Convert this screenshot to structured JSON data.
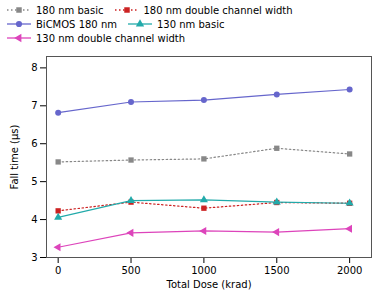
{
  "chart_data": {
    "type": "line",
    "x": [
      0,
      500,
      1000,
      1500,
      2000
    ],
    "series": [
      {
        "name": "180 nm basic",
        "color": "#888888",
        "values": [
          5.52,
          5.57,
          5.6,
          5.88,
          5.73
        ],
        "marker": "square",
        "line_style": "dotted"
      },
      {
        "name": "180 nm double channel width",
        "color": "#cc2222",
        "values": [
          4.23,
          4.46,
          4.3,
          4.45,
          4.43
        ],
        "marker": "square",
        "line_style": "dotted"
      },
      {
        "name": "BiCMOS 180 nm",
        "color": "#6666cc",
        "values": [
          6.82,
          7.1,
          7.15,
          7.3,
          7.43
        ],
        "marker": "circle",
        "line_style": "solid"
      },
      {
        "name": "130 nm basic",
        "color": "#22aaaa",
        "values": [
          4.06,
          4.5,
          4.52,
          4.46,
          4.43
        ],
        "marker": "triangle-up",
        "line_style": "solid"
      },
      {
        "name": "130 nm double channel width",
        "color": "#dd44bb",
        "values": [
          3.27,
          3.65,
          3.7,
          3.67,
          3.76
        ],
        "marker": "triangle-left",
        "line_style": "solid"
      }
    ],
    "xlabel": "Total Dose (krad)",
    "ylabel": "Fall time (μs)",
    "xlim": [
      -80,
      2150
    ],
    "ylim": [
      3.0,
      8.3
    ],
    "xticks": [
      0,
      500,
      1000,
      1500,
      2000
    ],
    "yticks": [
      3,
      4,
      5,
      6,
      7,
      8
    ],
    "grid": false,
    "legend": "upper left"
  }
}
